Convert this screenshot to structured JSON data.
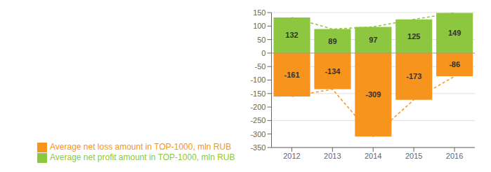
{
  "chart_data": {
    "type": "bar",
    "categories": [
      "2012",
      "2013",
      "2014",
      "2015",
      "2016"
    ],
    "series": [
      {
        "name": "Average net profit amount in TOP-1000, mln RUB",
        "color": "#8DC73F",
        "values": [
          132,
          89,
          97,
          125,
          149
        ]
      },
      {
        "name": "Average net loss amount in TOP-1000, mln RUB",
        "color": "#F7941D",
        "values": [
          -161,
          -134,
          -309,
          -173,
          -86
        ]
      }
    ],
    "ylim": [
      -350,
      150
    ],
    "yticks": [
      -350,
      -300,
      -250,
      -200,
      -150,
      -100,
      -50,
      0,
      50,
      100,
      150
    ],
    "grid": true,
    "stacked": true,
    "data_labels": true,
    "legend": "bottom"
  }
}
